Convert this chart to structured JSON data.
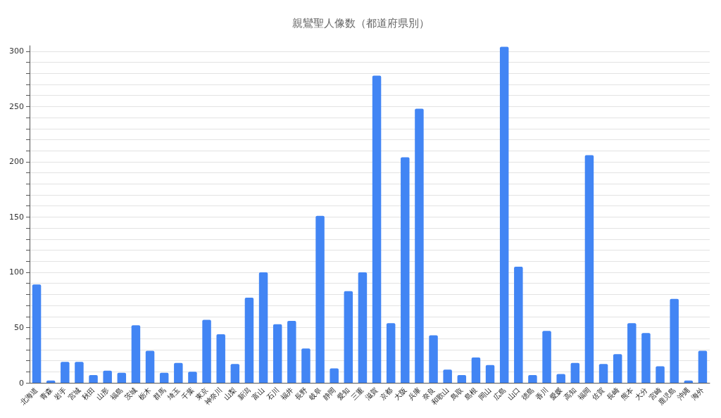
{
  "chart_data": {
    "type": "bar",
    "title": "親鸞聖人像数（都道府県別）",
    "categories": [
      "北海道",
      "青森",
      "岩手",
      "宮城",
      "秋田",
      "山形",
      "福島",
      "茨城",
      "栃木",
      "群馬",
      "埼玉",
      "千葉",
      "東京",
      "神奈川",
      "山梨",
      "新潟",
      "富山",
      "石川",
      "福井",
      "長野",
      "岐阜",
      "静岡",
      "愛知",
      "三重",
      "滋賀",
      "京都",
      "大阪",
      "兵庫",
      "奈良",
      "和歌山",
      "鳥取",
      "島根",
      "岡山",
      "広島",
      "山口",
      "徳島",
      "香川",
      "愛媛",
      "高知",
      "福岡",
      "佐賀",
      "長崎",
      "熊本",
      "大分",
      "宮崎",
      "鹿児島",
      "沖縄",
      "海外"
    ],
    "values": [
      89,
      2,
      19,
      19,
      7,
      11,
      9,
      52,
      29,
      9,
      18,
      10,
      57,
      44,
      17,
      77,
      100,
      53,
      56,
      31,
      151,
      13,
      83,
      100,
      278,
      54,
      204,
      248,
      43,
      12,
      7,
      23,
      16,
      304,
      105,
      7,
      47,
      8,
      18,
      206,
      17,
      26,
      54,
      45,
      15,
      76,
      2,
      29
    ],
    "color": "#4285f4",
    "ylim": [
      0,
      305
    ],
    "yticks": [
      0,
      {
        "value": 10,
        "label": null
      },
      {
        "value": 20,
        "label": null
      },
      {
        "value": 30,
        "label": null
      },
      {
        "value": 40,
        "label": null
      },
      50,
      {
        "value": 60,
        "label": null
      },
      {
        "value": 70,
        "label": null
      },
      {
        "value": 80,
        "label": null
      },
      {
        "value": 90,
        "label": null
      },
      100,
      {
        "value": 110,
        "label": null
      },
      {
        "value": 120,
        "label": null
      },
      {
        "value": 130,
        "label": null
      },
      {
        "value": 140,
        "label": null
      },
      150,
      {
        "value": 160,
        "label": null
      },
      {
        "value": 170,
        "label": null
      },
      {
        "value": 180,
        "label": null
      },
      {
        "value": 190,
        "label": null
      },
      200,
      {
        "value": 210,
        "label": null
      },
      {
        "value": 220,
        "label": null
      },
      {
        "value": 230,
        "label": null
      },
      {
        "value": 240,
        "label": null
      },
      250,
      {
        "value": 260,
        "label": null
      },
      {
        "value": 270,
        "label": null
      },
      {
        "value": 280,
        "label": null
      },
      {
        "value": 290,
        "label": null
      },
      300
    ],
    "grid": "y"
  }
}
